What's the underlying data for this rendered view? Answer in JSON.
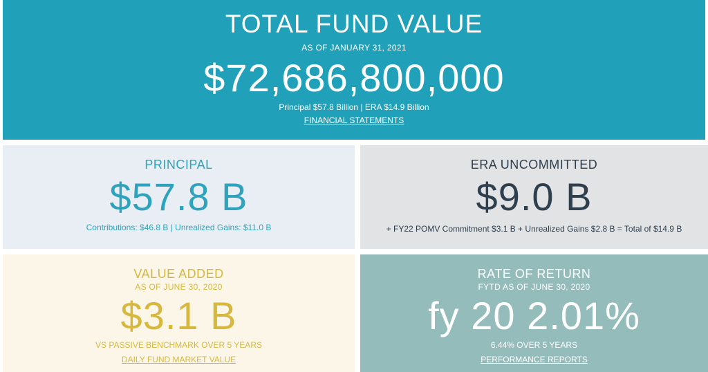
{
  "hero": {
    "title": "TOTAL FUND VALUE",
    "as_of": "AS OF JANUARY 31, 2021",
    "value": "$72,686,800,000",
    "breakdown": "Principal $57.8 Billion | ERA $14.9 Billion",
    "link": "FINANCIAL STATEMENTS"
  },
  "principal": {
    "label": "PRINCIPAL",
    "value": "$57.8 B",
    "note": "Contributions: $46.8 B | Unrealized Gains: $11.0 B"
  },
  "era": {
    "label": "ERA UNCOMMITTED",
    "value": "$9.0 B",
    "note": "+ FY22 POMV Commitment $3.1 B + Unrealized Gains $2.8 B = Total of $14.9 B"
  },
  "value_added": {
    "label": "VALUE ADDED",
    "as_of": "AS OF JUNE 30, 2020",
    "value": "$3.1 B",
    "note": "VS PASSIVE BENCHMARK OVER 5 YEARS",
    "link": "DAILY FUND MARKET VALUE"
  },
  "rate_of_return": {
    "label": "RATE OF RETURN",
    "as_of": "FYTD AS OF JUNE 30, 2020",
    "value": "fy 20 2.01%",
    "note": "6.44% OVER 5 YEARS",
    "link": "PERFORMANCE REPORTS"
  },
  "colors": {
    "hero_bg": "#21a1b9",
    "principal_bg": "#e8eef3",
    "principal_text": "#2fa3bd",
    "era_bg": "#e2e3e5",
    "era_text": "#2e3f4e",
    "value_added_bg": "#fbf6e8",
    "value_added_text": "#d8b83c",
    "ror_bg": "#93bcbb"
  }
}
